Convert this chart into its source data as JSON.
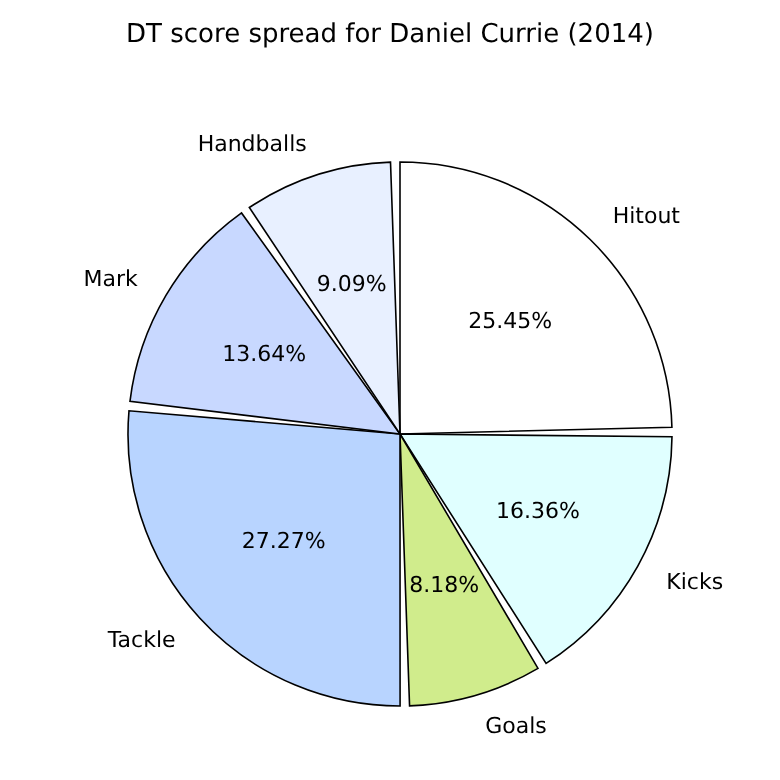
{
  "chart_data": {
    "type": "pie",
    "title": "DT score spread for Daniel Currie (2014)",
    "categories": [
      "Hitout",
      "Kicks",
      "Goals",
      "Tackle",
      "Mark",
      "Handballs"
    ],
    "values": [
      25.45,
      16.36,
      8.18,
      27.27,
      13.64,
      9.09
    ],
    "colors": [
      "#ffffff",
      "#e0ffff",
      "#d0ec8c",
      "#b8d4ff",
      "#c8d8ff",
      "#e8f0ff"
    ],
    "value_labels": [
      "25.45%",
      "16.36%",
      "8.18%",
      "27.27%",
      "13.64%",
      "9.09%"
    ]
  }
}
